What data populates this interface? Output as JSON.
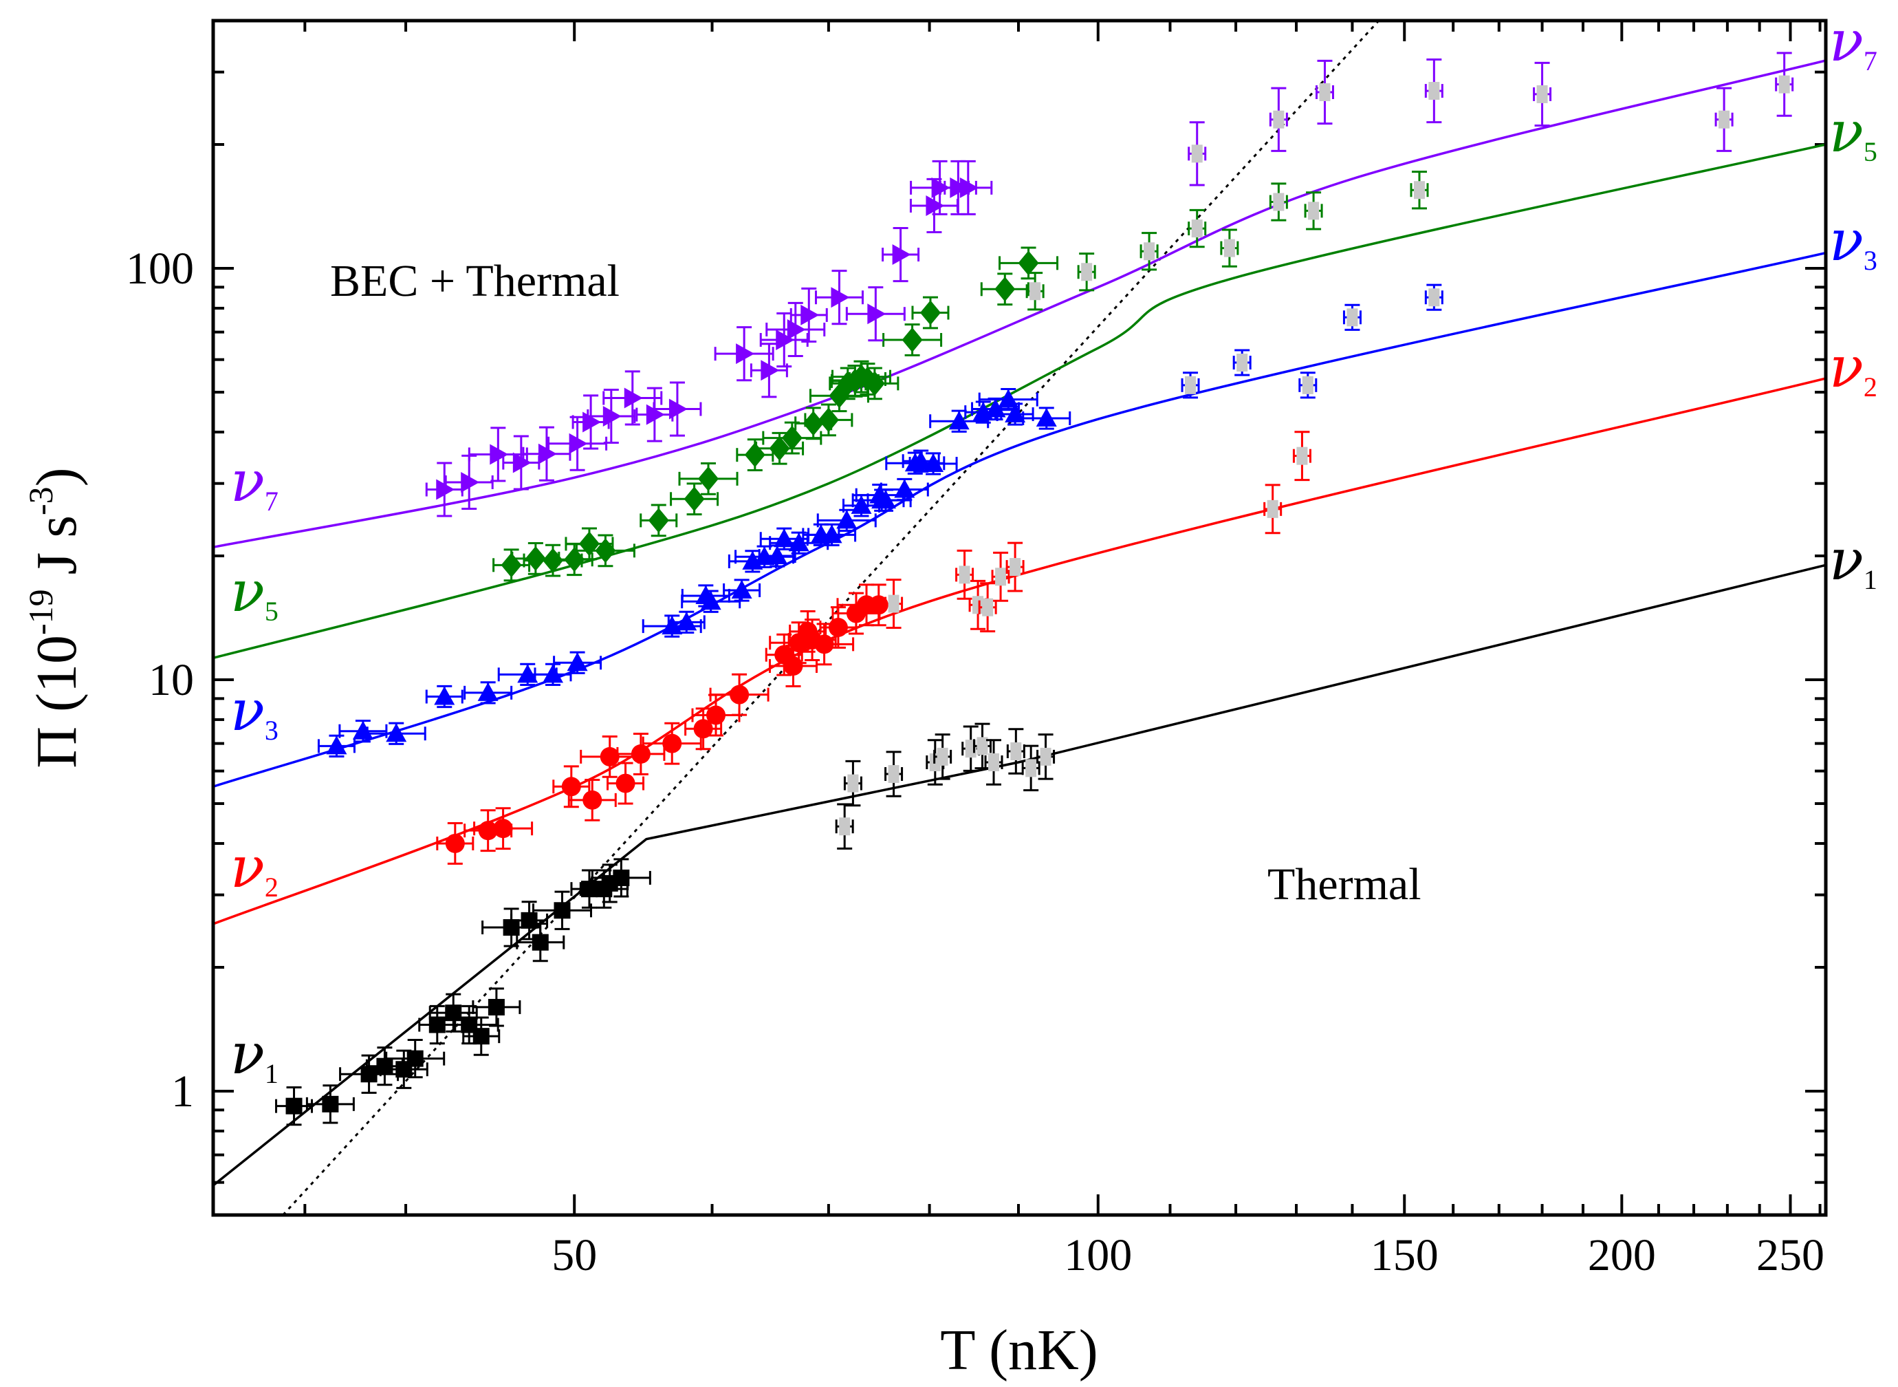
{
  "chart_data": {
    "type": "scatter",
    "xlabel": "T (nK)",
    "ylabel": "Π (10⁻¹⁹ J s⁻³)",
    "ylabel_parts": {
      "main": "Π (10",
      "exp1": "-19",
      "mid": " J s",
      "exp2": "-3",
      "end": ")"
    },
    "x_scale": "log",
    "y_scale": "log",
    "xlim": [
      31,
      262
    ],
    "ylim": [
      0.5,
      400
    ],
    "x_ticks": [
      50,
      100,
      150,
      200,
      250
    ],
    "x_tick_labels": [
      "50",
      "100",
      "150",
      "200",
      "250"
    ],
    "y_ticks": [
      1,
      10,
      100
    ],
    "y_tick_labels": [
      "1",
      "10",
      "100"
    ],
    "region_labels": [
      "BEC + Thermal",
      "Thermal"
    ],
    "crossover_line": {
      "style": "dotted",
      "points": [
        [
          34,
          0.5
        ],
        [
          145,
          400
        ]
      ]
    },
    "series": [
      {
        "name": "ν1",
        "symbol": "ν",
        "subscript": "1",
        "color": "#000000",
        "marker": "square",
        "fit": [
          [
            31,
            0.59
          ],
          [
            55,
            4.1
          ],
          [
            90,
            6.3
          ],
          [
            262,
            19
          ]
        ],
        "points": [
          [
            34.5,
            0.92
          ],
          [
            36.2,
            0.93
          ],
          [
            38.1,
            1.1
          ],
          [
            38.9,
            1.15
          ],
          [
            39.9,
            1.13
          ],
          [
            40.5,
            1.2
          ],
          [
            41.7,
            1.45
          ],
          [
            42.6,
            1.55
          ],
          [
            43.5,
            1.45
          ],
          [
            44.2,
            1.36
          ],
          [
            45.1,
            1.6
          ],
          [
            46.0,
            2.5
          ],
          [
            47.1,
            2.6
          ],
          [
            47.8,
            2.3
          ],
          [
            49.2,
            2.75
          ],
          [
            51.0,
            3.1
          ],
          [
            52.0,
            3.1
          ],
          [
            53.2,
            3.3
          ],
          [
            52.4,
            3.2
          ]
        ],
        "grey_points": [
          [
            71.5,
            4.4
          ],
          [
            72.3,
            5.6
          ],
          [
            76.3,
            5.9
          ],
          [
            80.6,
            6.3
          ],
          [
            81.4,
            6.5
          ],
          [
            84.5,
            6.8
          ],
          [
            85.8,
            6.9
          ],
          [
            87.1,
            6.3
          ],
          [
            89.7,
            6.7
          ],
          [
            91.5,
            6.1
          ],
          [
            93.3,
            6.5
          ]
        ]
      },
      {
        "name": "ν2",
        "symbol": "ν",
        "subscript": "2",
        "color": "#ff0000",
        "marker": "circle",
        "fit": [
          [
            31,
            2.55
          ],
          [
            50,
            5.5
          ],
          [
            80,
            15.5
          ],
          [
            262,
            54
          ]
        ],
        "points": [
          [
            42.7,
            4.0
          ],
          [
            44.6,
            4.3
          ],
          [
            45.5,
            4.35
          ],
          [
            49.8,
            5.5
          ],
          [
            51.2,
            5.1
          ],
          [
            52.4,
            6.5
          ],
          [
            53.5,
            5.6
          ],
          [
            54.6,
            6.6
          ],
          [
            56.9,
            7.0
          ],
          [
            59.3,
            7.6
          ],
          [
            60.3,
            8.2
          ],
          [
            62.2,
            9.2
          ],
          [
            66.0,
            11.5
          ],
          [
            66.8,
            10.8
          ],
          [
            67.3,
            12.3
          ],
          [
            68.1,
            13.1
          ],
          [
            68.5,
            12.5
          ],
          [
            69.6,
            12.2
          ],
          [
            70.9,
            13.4
          ],
          [
            72.6,
            14.5
          ],
          [
            73.6,
            15.2
          ],
          [
            74.8,
            15.2
          ]
        ],
        "grey_points": [
          [
            76.3,
            15.3
          ],
          [
            83.8,
            18
          ],
          [
            85.3,
            15.2
          ],
          [
            86.4,
            15.0
          ],
          [
            87.9,
            17.8
          ],
          [
            89.6,
            18.8
          ],
          [
            126,
            26
          ],
          [
            131,
            35
          ]
        ]
      },
      {
        "name": "ν3",
        "symbol": "ν",
        "subscript": "3",
        "color": "#0000ff",
        "marker": "triangle-up",
        "fit": [
          [
            31,
            5.5
          ],
          [
            50,
            10.5
          ],
          [
            70,
            21.5
          ],
          [
            100,
            43
          ],
          [
            262,
            109
          ]
        ],
        "points": [
          [
            36.5,
            6.9
          ],
          [
            37.8,
            7.5
          ],
          [
            39.5,
            7.4
          ],
          [
            42.1,
            9.1
          ],
          [
            44.6,
            9.3
          ],
          [
            47.0,
            10.3
          ],
          [
            48.6,
            10.3
          ],
          [
            50.2,
            11.0
          ],
          [
            56.9,
            13.5
          ],
          [
            58.0,
            13.8
          ],
          [
            59.5,
            16.0
          ],
          [
            59.9,
            15.5
          ],
          [
            62.4,
            16.5
          ],
          [
            63.3,
            19.4
          ],
          [
            64.3,
            19.9
          ],
          [
            65.4,
            20.0
          ],
          [
            66.0,
            22.0
          ],
          [
            67.3,
            21.5
          ],
          [
            69.3,
            22.5
          ],
          [
            70.3,
            22.5
          ],
          [
            71.7,
            24.4
          ],
          [
            73.1,
            26.5
          ],
          [
            74.9,
            28.1
          ],
          [
            75.1,
            27.3
          ],
          [
            75.5,
            27.3
          ],
          [
            77.4,
            29.0
          ],
          [
            78.5,
            33.6
          ],
          [
            79.1,
            34.0
          ],
          [
            80.4,
            33.5
          ],
          [
            83.2,
            42.5
          ],
          [
            85.9,
            44.7
          ],
          [
            87.3,
            45.5
          ],
          [
            88.8,
            48.0
          ],
          [
            89.6,
            44.2
          ],
          [
            93.4,
            43.2
          ]
        ],
        "grey_points": [
          [
            113,
            52
          ],
          [
            121,
            59
          ],
          [
            132,
            52
          ],
          [
            140,
            76
          ],
          [
            156,
            85
          ]
        ]
      },
      {
        "name": "ν5",
        "symbol": "ν",
        "subscript": "5",
        "color": "#008000",
        "marker": "diamond",
        "fit": [
          [
            31,
            11.3
          ],
          [
            50,
            19
          ],
          [
            70,
            30
          ],
          [
            100,
            64
          ],
          [
            120,
            95
          ],
          [
            262,
            200
          ]
        ],
        "points": [
          [
            46.0,
            19.0
          ],
          [
            47.5,
            19.7
          ],
          [
            48.6,
            19.5
          ],
          [
            50.0,
            19.6
          ],
          [
            51.0,
            21.4
          ],
          [
            52.1,
            20.6
          ],
          [
            55.9,
            24.4
          ],
          [
            58.6,
            27.5
          ],
          [
            59.7,
            30.8
          ],
          [
            63.5,
            35.2
          ],
          [
            65.6,
            36.5
          ],
          [
            66.7,
            38.7
          ],
          [
            68.6,
            42.0
          ],
          [
            70.0,
            42.8
          ],
          [
            71.0,
            49.0
          ],
          [
            71.8,
            52.5
          ],
          [
            72.5,
            53.2
          ],
          [
            73.1,
            54.5
          ],
          [
            73.7,
            53.8
          ],
          [
            74.4,
            52.5
          ],
          [
            78.2,
            67.0
          ],
          [
            80.1,
            78.0
          ],
          [
            88.4,
            89.0
          ],
          [
            91.2,
            103.0
          ]
        ],
        "grey_points": [
          [
            92.0,
            88
          ],
          [
            98.5,
            98
          ],
          [
            107,
            110
          ],
          [
            114,
            125
          ],
          [
            119,
            112
          ],
          [
            127,
            145
          ],
          [
            133,
            138
          ],
          [
            153,
            155
          ]
        ]
      },
      {
        "name": "ν7",
        "symbol": "ν",
        "subscript": "7",
        "color": "#8000ff",
        "marker": "triangle-right",
        "fit": [
          [
            31,
            21
          ],
          [
            50,
            31
          ],
          [
            70,
            48
          ],
          [
            100,
            90
          ],
          [
            140,
            165
          ],
          [
            262,
            320
          ]
        ],
        "points": [
          [
            42.1,
            29.0
          ],
          [
            43.5,
            30.2
          ],
          [
            45.2,
            35.3
          ],
          [
            46.6,
            33.7
          ],
          [
            48.2,
            35.4
          ],
          [
            50.2,
            37.5
          ],
          [
            51.1,
            42.3
          ],
          [
            52.5,
            43.7
          ],
          [
            54.0,
            48.4
          ],
          [
            55.6,
            44.1
          ],
          [
            57.3,
            45.5
          ],
          [
            62.6,
            62.0
          ],
          [
            64.7,
            56.5
          ],
          [
            66.0,
            67.0
          ],
          [
            67.0,
            71.0
          ],
          [
            68.2,
            77.0
          ],
          [
            71.0,
            85.0
          ],
          [
            74.5,
            77.5
          ],
          [
            77.0,
            108
          ],
          [
            80.5,
            142
          ],
          [
            81.1,
            157
          ],
          [
            83.1,
            157
          ],
          [
            84.2,
            157
          ]
        ],
        "grey_points": [
          [
            114,
            190
          ],
          [
            127,
            230
          ],
          [
            135,
            268
          ],
          [
            156,
            270
          ],
          [
            180,
            265
          ],
          [
            229,
            230
          ],
          [
            248,
            280
          ]
        ]
      }
    ]
  }
}
